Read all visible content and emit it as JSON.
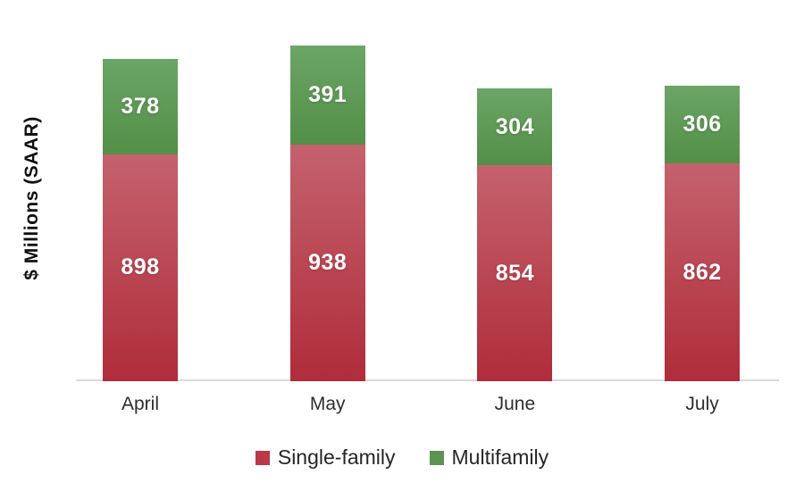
{
  "chart_data": {
    "type": "bar",
    "stacked": true,
    "categories": [
      "April",
      "May",
      "June",
      "July"
    ],
    "series": [
      {
        "name": "Single-family",
        "values": [
          898,
          938,
          854,
          862
        ],
        "gradient_top": "#c4626d",
        "gradient_bottom": "#b02c3a",
        "legend_color": "#b93a47"
      },
      {
        "name": "Multifamily",
        "values": [
          378,
          391,
          304,
          306
        ],
        "gradient_top": "#6ca567",
        "gradient_bottom": "#538f47",
        "legend_color": "#5b9350"
      }
    ],
    "ylabel": "$ Millions (SAAR)",
    "xlabel": "",
    "legend_position": "bottom",
    "grid": false,
    "data_labels": true,
    "data_label_color": "#ffffff",
    "axis_line_color": "#d9d9d9",
    "text_color": "#262626",
    "background_color": "#ffffff"
  }
}
